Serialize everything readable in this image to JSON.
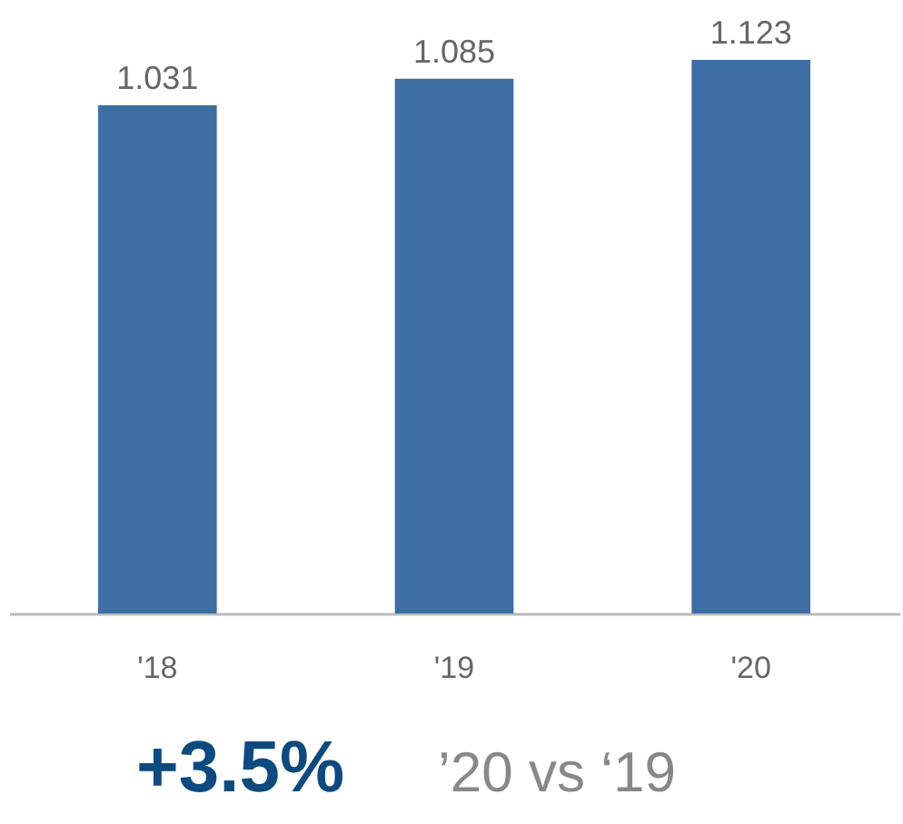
{
  "chart_data": {
    "type": "bar",
    "categories": [
      "'18",
      "'19",
      "'20"
    ],
    "values": [
      1.031,
      1.085,
      1.123
    ],
    "color": "#3d6fa3",
    "data_labels": true,
    "grid": false,
    "annotations": [
      "+3.5%",
      "’20 vs ‘19"
    ]
  }
}
